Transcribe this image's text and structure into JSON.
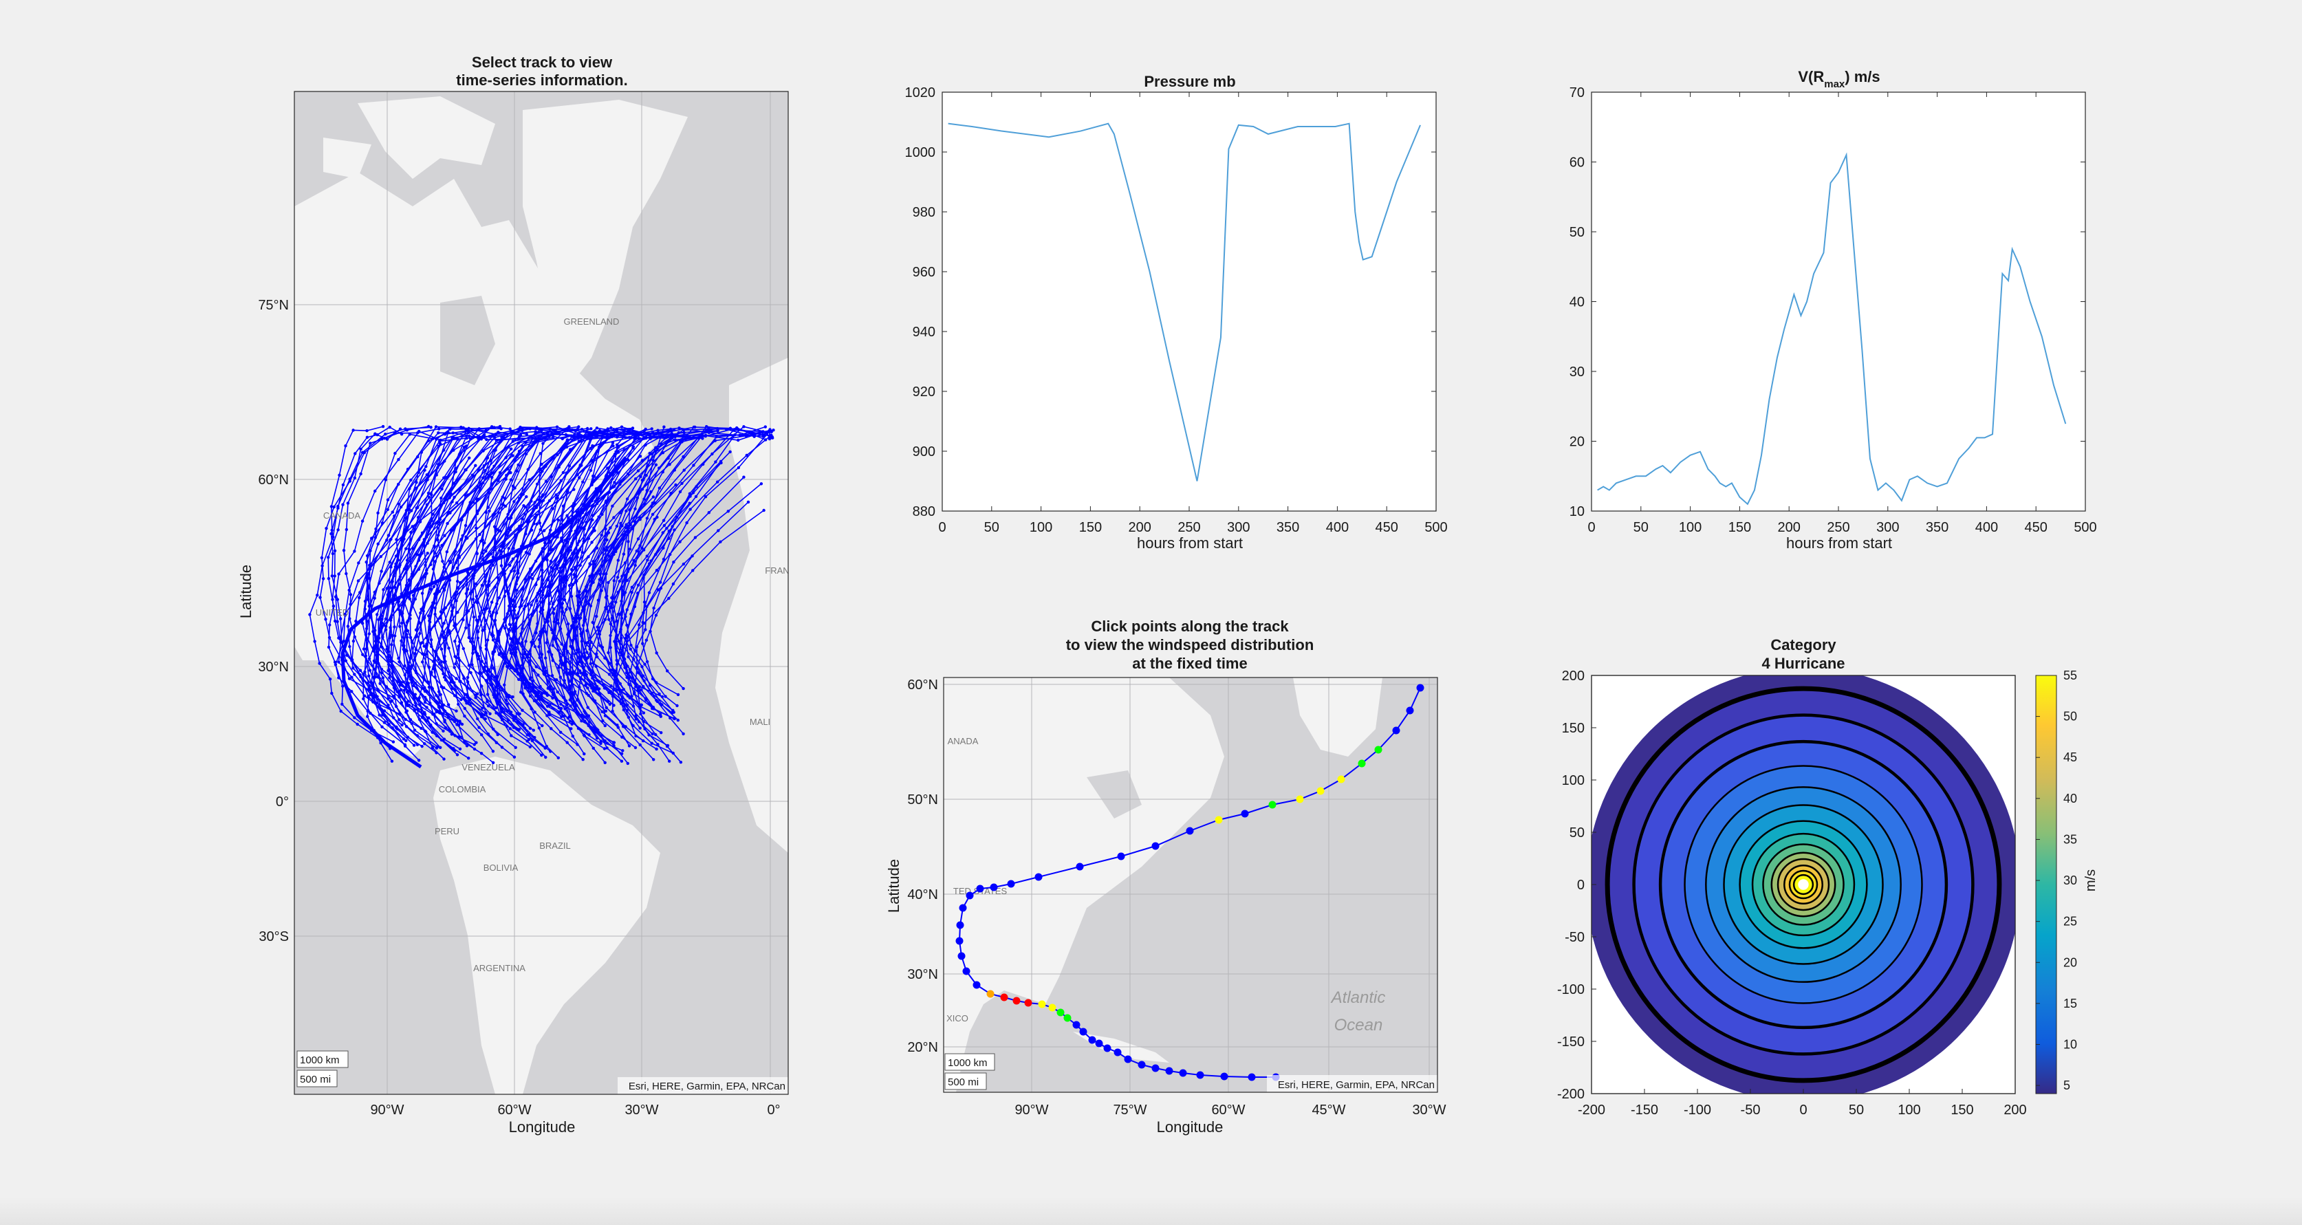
{
  "colors": {
    "track_blue": "#0000ff",
    "line_blue": "#4f9fd8",
    "map_water": "#d3d3d6",
    "map_land": "#f3f3f3",
    "parula": [
      "#352a87",
      "#0f5cdd",
      "#1481d6",
      "#06a4ca",
      "#2eb7a4",
      "#87bf77",
      "#d1bb59",
      "#fec832",
      "#f9fb0e"
    ]
  },
  "map_overview": {
    "title_line1": "Select track to view",
    "title_line2": "time-series information.",
    "ylabel": "Latitude",
    "xlabel": "Longitude",
    "lat_ticks": [
      "75°N",
      "60°N",
      "30°N",
      "0°",
      "30°S"
    ],
    "lon_ticks": [
      "90°W",
      "60°W",
      "30°W",
      "0°"
    ],
    "scale_km": "1000 km",
    "scale_mi": "500 mi",
    "attribution": "Esri, HERE, Garmin, EPA, NRCan",
    "place_labels": [
      "GREENLAND",
      "CANADA",
      "UNITED",
      "VENEZUELA",
      "COLOMBIA",
      "PERU",
      "BRAZIL",
      "BOLIVIA",
      "ARGENTINA",
      "MALI",
      "FRAN"
    ]
  },
  "map_track": {
    "title_line1": "Click points along the track",
    "title_line2": "to view the windspeed distribution",
    "title_line3": "at the fixed time",
    "ylabel": "Latitude",
    "xlabel": "Longitude",
    "lat_ticks": [
      "60°N",
      "50°N",
      "40°N",
      "30°N",
      "20°N"
    ],
    "lon_ticks": [
      "90°W",
      "75°W",
      "60°W",
      "45°W",
      "30°W"
    ],
    "scale_km": "1000 km",
    "scale_mi": "500 mi",
    "attribution": "Esri, HERE, Garmin, EPA, NRCan",
    "ocean_line1": "Atlantic",
    "ocean_line2": "Ocean",
    "place_labels": [
      "ANADA",
      "TED STATES",
      "XICO"
    ]
  },
  "chart_data": [
    {
      "type": "line",
      "title": "Pressure mb",
      "xlabel": "hours from start",
      "ylabel": "",
      "xlim": [
        0,
        500
      ],
      "ylim": [
        880,
        1020
      ],
      "xticks": [
        0,
        50,
        100,
        150,
        200,
        250,
        300,
        350,
        400,
        450,
        500
      ],
      "yticks": [
        880,
        900,
        920,
        940,
        960,
        980,
        1000,
        1020
      ],
      "x": [
        6,
        30,
        60,
        108,
        140,
        168,
        174,
        190,
        210,
        230,
        258,
        282,
        290,
        300,
        315,
        330,
        360,
        398,
        412,
        418,
        422,
        426,
        435,
        445,
        460,
        484
      ],
      "y": [
        1009.5,
        1008.5,
        1007,
        1005,
        1007,
        1009.5,
        1006,
        986,
        960,
        930,
        890,
        938,
        1001,
        1009,
        1008.5,
        1006,
        1008.5,
        1008.5,
        1009.5,
        980,
        970,
        964,
        965,
        975,
        990,
        1009
      ]
    },
    {
      "type": "line",
      "title": "V(R",
      "title_sub": "max",
      "title_end": ") m/s",
      "xlabel": "hours from start",
      "ylabel": "",
      "xlim": [
        0,
        500
      ],
      "ylim": [
        10,
        70
      ],
      "xticks": [
        0,
        50,
        100,
        150,
        200,
        250,
        300,
        350,
        400,
        450,
        500
      ],
      "yticks": [
        10,
        20,
        30,
        40,
        50,
        60,
        70
      ],
      "x": [
        6,
        12,
        18,
        25,
        35,
        45,
        55,
        65,
        72,
        80,
        90,
        100,
        110,
        118,
        125,
        130,
        136,
        142,
        150,
        158,
        165,
        172,
        180,
        188,
        195,
        205,
        212,
        218,
        225,
        235,
        242,
        250,
        258,
        266,
        274,
        282,
        290,
        298,
        306,
        314,
        322,
        330,
        340,
        350,
        360,
        372,
        382,
        390,
        398,
        406,
        416,
        422,
        426,
        434,
        444,
        456,
        468,
        480
      ],
      "y": [
        13,
        13.5,
        13,
        14,
        14.5,
        15,
        15,
        16,
        16.5,
        15.5,
        17,
        18,
        18.5,
        16,
        15,
        14,
        13.5,
        14,
        12,
        11,
        13,
        18,
        26,
        32,
        36,
        41,
        38,
        40,
        44,
        47,
        57,
        58.5,
        61,
        47,
        33,
        17.5,
        13,
        14,
        13,
        11.5,
        14.5,
        15,
        14,
        13.5,
        14,
        17.5,
        19,
        20.5,
        20.5,
        21,
        44,
        43,
        47.5,
        45,
        40,
        35,
        28,
        22.5
      ]
    },
    {
      "type": "heatmap",
      "title_line1": "Category",
      "title_line2": "4 Hurricane",
      "xlim": [
        -200,
        200
      ],
      "ylim": [
        -200,
        200
      ],
      "xticks": [
        -200,
        -150,
        -100,
        -50,
        0,
        50,
        100,
        150,
        200
      ],
      "yticks": [
        200,
        150,
        100,
        50,
        0,
        -50,
        -100,
        -150,
        -200
      ],
      "colorbar_label": "m/s",
      "colorbar_ticks": [
        55,
        50,
        45,
        40,
        35,
        30,
        25,
        20,
        15,
        10,
        5
      ],
      "colorbar_range": [
        4,
        55
      ]
    }
  ]
}
